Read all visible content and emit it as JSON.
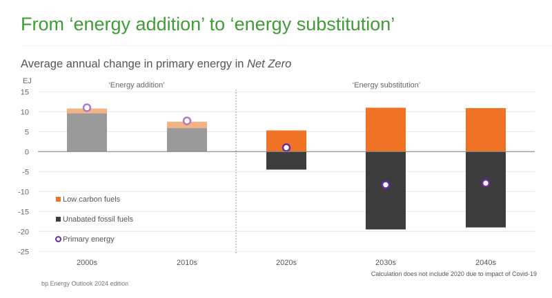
{
  "title": "From ‘energy addition’ to ‘energy substitution’",
  "subtitle_prefix": "Average annual change in primary energy in ",
  "subtitle_italic": "Net Zero",
  "footer": "bp Energy Outlook 2024 edition",
  "note": "Calculation does not include 2020 due to impact of Covid-19",
  "chart_data": {
    "type": "bar",
    "ylabel": "EJ",
    "ylim": [
      -25,
      15
    ],
    "yticks": [
      15,
      10,
      5,
      0,
      -5,
      -10,
      -15,
      -20,
      -25
    ],
    "categories": [
      "2000s",
      "2010s",
      "2020s",
      "2030s",
      "2040s"
    ],
    "section_labels": [
      "‘Energy addition’",
      "‘Energy substitution’"
    ],
    "series": [
      {
        "name": "Low carbon fuels",
        "kind": "bar",
        "color": "#f07224",
        "values": [
          1.2,
          1.6,
          5.3,
          11.0,
          10.9
        ]
      },
      {
        "name": "Unabated fossil fuels",
        "kind": "bar",
        "color": "#3c3c3c",
        "values": [
          9.6,
          5.9,
          -4.5,
          -19.5,
          -19.0
        ]
      },
      {
        "name": "Primary energy",
        "kind": "marker",
        "color": "#6a2aa0",
        "values": [
          11.0,
          7.7,
          1.0,
          -8.3,
          -7.9
        ]
      }
    ],
    "legend_position": "bottom-left",
    "grid": true
  }
}
